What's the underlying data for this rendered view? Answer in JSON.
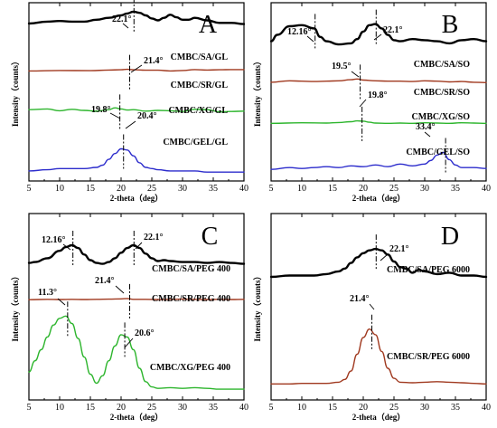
{
  "chart_data": [
    {
      "type": "line",
      "panel": "A",
      "xlabel": "2-theta（deg）",
      "ylabel": "Intensity（counts）",
      "xlim": [
        5,
        40
      ],
      "xticks": [
        5,
        10,
        15,
        20,
        25,
        30,
        35,
        40
      ],
      "series": [
        {
          "name": "CMBC/SA/GL",
          "color": "#000000",
          "offset": 0.88,
          "scale": 0.07,
          "x": [
            5,
            8,
            10,
            12,
            14,
            16,
            18,
            20,
            21,
            22,
            23,
            24,
            25,
            26,
            27,
            28,
            29,
            30,
            31,
            32,
            34,
            36,
            38,
            40
          ],
          "y": [
            0.05,
            0.2,
            0.25,
            0.2,
            0.2,
            0.35,
            0.5,
            0.7,
            0.85,
            1.0,
            0.9,
            0.7,
            0.45,
            0.3,
            0.5,
            0.75,
            0.55,
            0.35,
            0.35,
            0.5,
            0.3,
            0.1,
            0.1,
            0.0
          ]
        },
        {
          "name": "CMBC/SR/GL",
          "color": "#a0391f",
          "offset": 0.61,
          "scale": 0.025,
          "x": [
            5,
            10,
            15,
            18,
            20,
            21,
            22,
            24,
            26,
            28,
            30,
            32,
            34,
            36,
            38,
            40
          ],
          "y": [
            0.3,
            0.4,
            0.35,
            0.5,
            0.55,
            0.65,
            0.55,
            0.45,
            0.45,
            0.3,
            0.4,
            0.6,
            0.5,
            0.55,
            0.6,
            0.6
          ]
        },
        {
          "name": "CMBC/XG/GL",
          "color": "#2db52d",
          "offset": 0.38,
          "scale": 0.04,
          "x": [
            5,
            8,
            10,
            12,
            14,
            16,
            18,
            19,
            20,
            21,
            22,
            24,
            26,
            28,
            30,
            32,
            34,
            36,
            38,
            40
          ],
          "y": [
            0.5,
            0.6,
            0.35,
            0.55,
            0.4,
            0.3,
            0.5,
            0.75,
            0.6,
            0.45,
            0.5,
            0.3,
            0.4,
            0.35,
            0.25,
            0.55,
            0.5,
            0.2,
            0.25,
            0.3
          ]
        },
        {
          "name": "CMBC/GEL/GL",
          "color": "#2c2ccc",
          "offset": 0.05,
          "scale": 0.13,
          "x": [
            5,
            8,
            10,
            12,
            14,
            16,
            17,
            18,
            19,
            20,
            21,
            22,
            23,
            24,
            25,
            26,
            28,
            30,
            32,
            34,
            36,
            38,
            40
          ],
          "y": [
            0.05,
            0.1,
            0.15,
            0.15,
            0.15,
            0.2,
            0.3,
            0.55,
            0.8,
            1.0,
            0.95,
            0.7,
            0.4,
            0.2,
            0.15,
            0.1,
            0.05,
            0.05,
            0.05,
            0.0,
            0.0,
            0.0,
            0.0
          ]
        }
      ],
      "peaks": [
        {
          "label": "22.1°",
          "x": 22.1,
          "series": "CMBC/SA/GL"
        },
        {
          "label": "21.4°",
          "x": 21.4,
          "series": "CMBC/SR/GL"
        },
        {
          "label": "19.8°",
          "x": 19.8,
          "series": "CMBC/XG/GL"
        },
        {
          "label": "20.4°",
          "x": 20.4,
          "series": "CMBC/GEL/GL"
        }
      ]
    },
    {
      "type": "line",
      "panel": "B",
      "xlabel": "2-theta（deg）",
      "ylabel": "Intensity（counts）",
      "xlim": [
        5,
        40
      ],
      "xticks": [
        5,
        10,
        15,
        20,
        25,
        30,
        35,
        40
      ],
      "series": [
        {
          "name": "CMBC/SA/SO",
          "color": "#000000",
          "offset": 0.76,
          "scale": 0.12,
          "x": [
            5,
            6,
            8,
            10,
            12,
            13,
            14,
            16,
            18,
            19,
            20,
            21,
            22,
            23,
            24,
            25,
            26,
            28,
            30,
            32,
            34,
            36,
            38,
            40
          ],
          "y": [
            0.2,
            0.5,
            0.9,
            0.95,
            0.8,
            0.4,
            0.2,
            0.05,
            0.1,
            0.3,
            0.65,
            0.95,
            1.0,
            0.8,
            0.5,
            0.25,
            0.2,
            0.3,
            0.25,
            0.2,
            0.1,
            0.25,
            0.3,
            0.2
          ]
        },
        {
          "name": "CMBC/SR/SO",
          "color": "#a0391f",
          "offset": 0.54,
          "scale": 0.04,
          "x": [
            5,
            8,
            10,
            12,
            14,
            16,
            18,
            19,
            20,
            22,
            24,
            26,
            28,
            30,
            32,
            34,
            36,
            38,
            40
          ],
          "y": [
            0.35,
            0.55,
            0.5,
            0.45,
            0.5,
            0.55,
            0.7,
            0.8,
            0.65,
            0.55,
            0.5,
            0.5,
            0.45,
            0.55,
            0.5,
            0.4,
            0.45,
            0.35,
            0.3
          ]
        },
        {
          "name": "CMBC/XG/SO",
          "color": "#2db52d",
          "offset": 0.31,
          "scale": 0.03,
          "x": [
            5,
            10,
            14,
            16,
            18,
            19,
            20,
            21,
            22,
            24,
            26,
            28,
            30,
            32,
            34,
            36,
            38,
            40
          ],
          "y": [
            0.45,
            0.55,
            0.5,
            0.6,
            0.75,
            0.9,
            0.85,
            0.65,
            0.5,
            0.45,
            0.5,
            0.45,
            0.55,
            0.5,
            0.45,
            0.55,
            0.5,
            0.45
          ]
        },
        {
          "name": "CMBC/GEL/SO",
          "color": "#2c2ccc",
          "offset": 0.06,
          "scale": 0.1,
          "x": [
            5,
            8,
            10,
            12,
            14,
            16,
            18,
            20,
            22,
            24,
            26,
            28,
            30,
            31,
            32,
            33,
            34,
            35,
            36,
            38,
            40
          ],
          "y": [
            0.05,
            0.15,
            0.1,
            0.15,
            0.2,
            0.15,
            0.25,
            0.2,
            0.3,
            0.2,
            0.35,
            0.25,
            0.35,
            0.55,
            0.85,
            1.0,
            0.6,
            0.3,
            0.15,
            0.15,
            0.1
          ]
        }
      ],
      "peaks": [
        {
          "label": "12.16°",
          "x": 12.16,
          "series": "CMBC/SA/SO"
        },
        {
          "label": "22.1°",
          "x": 22.1,
          "series": "CMBC/SA/SO"
        },
        {
          "label": "19.5°",
          "x": 19.5,
          "series": "CMBC/SR/SO"
        },
        {
          "label": "19.8°",
          "x": 19.8,
          "series": "CMBC/XG/SO"
        },
        {
          "label": "33.4°",
          "x": 33.4,
          "series": "CMBC/GEL/SO"
        }
      ]
    },
    {
      "type": "line",
      "panel": "C",
      "xlabel": "2-theta（deg）",
      "ylabel": "Intensity（counts）",
      "xlim": [
        5,
        40
      ],
      "xticks": [
        5,
        10,
        15,
        20,
        25,
        30,
        35,
        40
      ],
      "series": [
        {
          "name": "CMBC/SA/PEG 400",
          "color": "#000000",
          "offset": 0.73,
          "scale": 0.1,
          "x": [
            5,
            6,
            8,
            10,
            11,
            12,
            13,
            14,
            15,
            16,
            17,
            18,
            19,
            20,
            21,
            22,
            23,
            24,
            25,
            26,
            27,
            28,
            30,
            32,
            34,
            36,
            38,
            40
          ],
          "y": [
            0.05,
            0.1,
            0.3,
            0.7,
            0.9,
            1.0,
            0.85,
            0.5,
            0.2,
            0.05,
            0.0,
            0.1,
            0.3,
            0.6,
            0.85,
            1.0,
            0.85,
            0.55,
            0.3,
            0.15,
            0.2,
            0.15,
            0.1,
            0.1,
            0.05,
            0.1,
            0.05,
            0.0
          ]
        },
        {
          "name": "CMBC/SR/PEG 400",
          "color": "#a0391f",
          "offset": 0.53,
          "scale": 0.02,
          "x": [
            5,
            8,
            10,
            12,
            14,
            16,
            18,
            20,
            21,
            22,
            24,
            26,
            28,
            30,
            32,
            34,
            36,
            38,
            40
          ],
          "y": [
            0.4,
            0.5,
            0.45,
            0.5,
            0.45,
            0.5,
            0.55,
            0.6,
            0.7,
            0.5,
            0.5,
            0.45,
            0.5,
            0.55,
            0.5,
            0.45,
            0.5,
            0.45,
            0.5
          ]
        },
        {
          "name": "CMBC/XG/PEG 400",
          "color": "#2db52d",
          "offset": 0.05,
          "scale": 0.4,
          "x": [
            5,
            6,
            7,
            8,
            9,
            10,
            11,
            12,
            13,
            14,
            15,
            16,
            17,
            18,
            19,
            20,
            21,
            22,
            23,
            24,
            25,
            26,
            28,
            30,
            32,
            34,
            36,
            38,
            40
          ],
          "y": [
            0.25,
            0.4,
            0.55,
            0.72,
            0.88,
            0.97,
            1.0,
            0.9,
            0.7,
            0.45,
            0.22,
            0.1,
            0.2,
            0.4,
            0.6,
            0.75,
            0.72,
            0.55,
            0.3,
            0.12,
            0.05,
            0.03,
            0.04,
            0.03,
            0.04,
            0.03,
            0.02,
            0.02,
            0.02
          ]
        }
      ],
      "peaks": [
        {
          "label": "12.16°",
          "x": 12.16,
          "series": "CMBC/SA/PEG 400"
        },
        {
          "label": "22.1°",
          "x": 22.1,
          "series": "CMBC/SA/PEG 400"
        },
        {
          "label": "21.4°",
          "x": 21.4,
          "series": "CMBC/SR/PEG 400"
        },
        {
          "label": "11.3°",
          "x": 11.3,
          "series": "CMBC/XG/PEG 400"
        },
        {
          "label": "20.6°",
          "x": 20.6,
          "series": "CMBC/XG/PEG 400"
        }
      ]
    },
    {
      "type": "line",
      "panel": "D",
      "xlabel": "2-theta（deg）",
      "ylabel": "Intensity（counts）",
      "xlim": [
        5,
        40
      ],
      "xticks": [
        5,
        10,
        15,
        20,
        25,
        30,
        35,
        40
      ],
      "series": [
        {
          "name": "CMBC/SA/PEG 6000",
          "color": "#000000",
          "offset": 0.66,
          "scale": 0.15,
          "x": [
            5,
            8,
            10,
            12,
            14,
            16,
            17,
            18,
            19,
            20,
            21,
            22,
            23,
            24,
            25,
            26,
            27,
            28,
            29,
            30,
            32,
            34,
            36,
            38,
            40
          ],
          "y": [
            0.0,
            0.05,
            0.05,
            0.05,
            0.1,
            0.2,
            0.3,
            0.5,
            0.7,
            0.85,
            0.95,
            1.0,
            0.95,
            0.8,
            0.55,
            0.35,
            0.3,
            0.15,
            0.25,
            0.2,
            0.1,
            0.15,
            0.05,
            0.05,
            0.0
          ]
        },
        {
          "name": "CMBC/SR/PEG 6000",
          "color": "#a0391f",
          "offset": 0.08,
          "scale": 0.3,
          "x": [
            5,
            8,
            10,
            12,
            14,
            16,
            17,
            18,
            19,
            20,
            21,
            22,
            23,
            24,
            25,
            26,
            28,
            30,
            32,
            34,
            36,
            38,
            40
          ],
          "y": [
            0.02,
            0.02,
            0.03,
            0.03,
            0.03,
            0.05,
            0.1,
            0.25,
            0.55,
            0.85,
            1.0,
            0.9,
            0.6,
            0.3,
            0.12,
            0.05,
            0.04,
            0.05,
            0.06,
            0.05,
            0.04,
            0.03,
            0.02
          ]
        }
      ],
      "peaks": [
        {
          "label": "22.1°",
          "x": 22.1,
          "series": "CMBC/SA/PEG 6000"
        },
        {
          "label": "21.4°",
          "x": 21.4,
          "series": "CMBC/SR/PEG 6000"
        }
      ]
    }
  ]
}
